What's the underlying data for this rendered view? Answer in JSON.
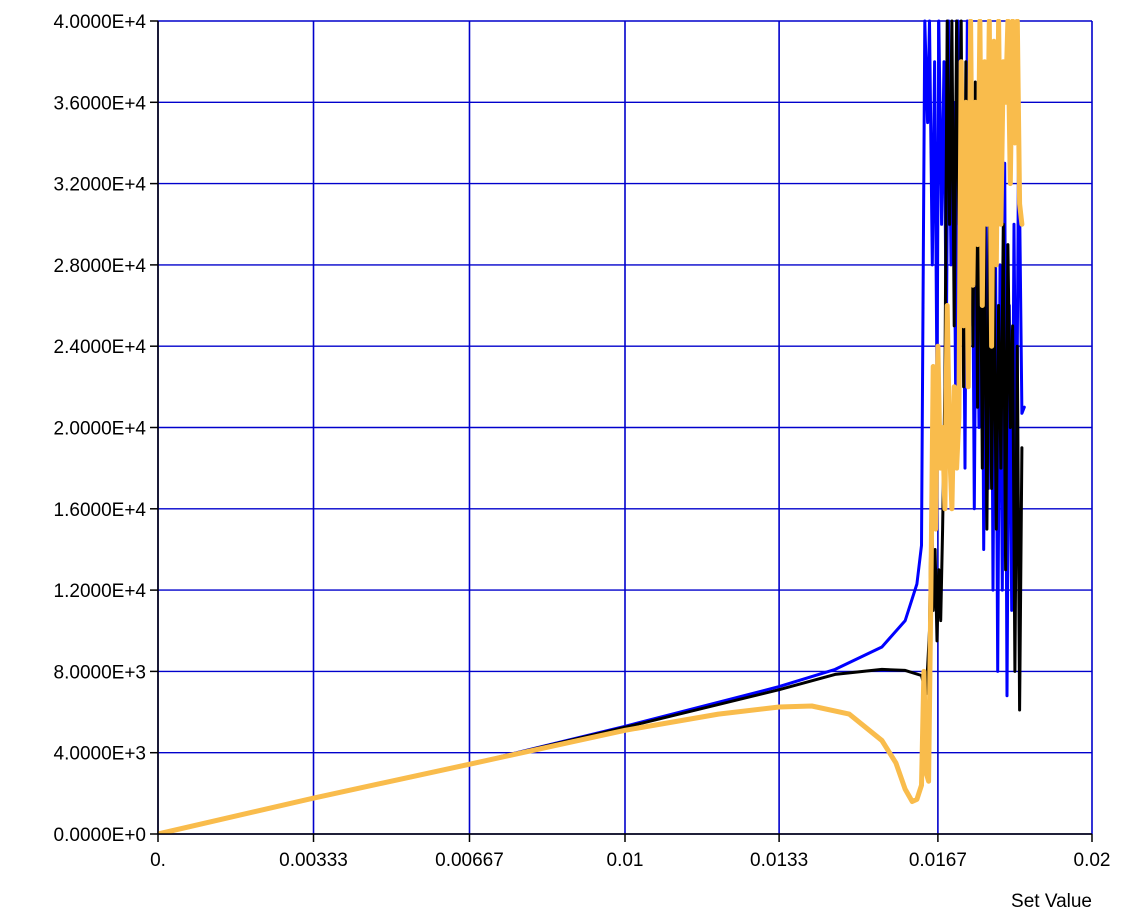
{
  "chart_data": {
    "type": "line",
    "xlabel": "Set Value",
    "ylabel": "",
    "xlim": [
      0,
      0.02
    ],
    "ylim": [
      0,
      40000
    ],
    "grid": true,
    "colors": {
      "grid": "#0000cc",
      "axis": "#000000",
      "background": "#ffffff"
    },
    "x_ticks": [
      {
        "value": 0,
        "label": "0."
      },
      {
        "value": 0.00333,
        "label": "0.00333"
      },
      {
        "value": 0.00667,
        "label": "0.00667"
      },
      {
        "value": 0.01,
        "label": "0.01"
      },
      {
        "value": 0.0133,
        "label": "0.0133"
      },
      {
        "value": 0.0167,
        "label": "0.0167"
      },
      {
        "value": 0.02,
        "label": "0.02"
      }
    ],
    "y_ticks": [
      {
        "value": 0,
        "label": "0.0000E+0"
      },
      {
        "value": 4000,
        "label": "4.0000E+3"
      },
      {
        "value": 8000,
        "label": "8.0000E+3"
      },
      {
        "value": 12000,
        "label": "1.2000E+4"
      },
      {
        "value": 16000,
        "label": "1.6000E+4"
      },
      {
        "value": 20000,
        "label": "2.0000E+4"
      },
      {
        "value": 24000,
        "label": "2.4000E+4"
      },
      {
        "value": 28000,
        "label": "2.8000E+4"
      },
      {
        "value": 32000,
        "label": "3.2000E+4"
      },
      {
        "value": 36000,
        "label": "3.6000E+4"
      },
      {
        "value": 40000,
        "label": "4.0000E+4"
      }
    ],
    "series": [
      {
        "color": "#0000ff",
        "width": 3,
        "points": [
          [
            0,
            0
          ],
          [
            0.0033,
            1750
          ],
          [
            0.0067,
            3450
          ],
          [
            0.01,
            5300
          ],
          [
            0.0133,
            7250
          ],
          [
            0.0145,
            8100
          ],
          [
            0.0155,
            9200
          ],
          [
            0.016,
            10500
          ],
          [
            0.01625,
            12300
          ],
          [
            0.01635,
            14200
          ],
          [
            0.01642,
            40000
          ],
          [
            0.01648,
            35000
          ],
          [
            0.01652,
            40000
          ],
          [
            0.01658,
            28000
          ],
          [
            0.01663,
            38000
          ],
          [
            0.01668,
            22000
          ],
          [
            0.01672,
            40000
          ],
          [
            0.01678,
            30000
          ],
          [
            0.01683,
            38000
          ],
          [
            0.01688,
            24000
          ],
          [
            0.01693,
            40000
          ],
          [
            0.01698,
            28000
          ],
          [
            0.01703,
            36000
          ],
          [
            0.01708,
            22000
          ],
          [
            0.01713,
            40000
          ],
          [
            0.01718,
            26000
          ],
          [
            0.01723,
            35000
          ],
          [
            0.01728,
            18000
          ],
          [
            0.01733,
            40000
          ],
          [
            0.01738,
            25000
          ],
          [
            0.01743,
            35000
          ],
          [
            0.01748,
            16000
          ],
          [
            0.01753,
            33000
          ],
          [
            0.01758,
            20000
          ],
          [
            0.01763,
            38000
          ],
          [
            0.01768,
            14000
          ],
          [
            0.01773,
            30000
          ],
          [
            0.01778,
            17000
          ],
          [
            0.01783,
            36000
          ],
          [
            0.01788,
            12000
          ],
          [
            0.01793,
            31000
          ],
          [
            0.01798,
            8000
          ],
          [
            0.01803,
            28000
          ],
          [
            0.01808,
            12000
          ],
          [
            0.01813,
            33000
          ],
          [
            0.01818,
            6800
          ],
          [
            0.01823,
            26000
          ],
          [
            0.01828,
            11000
          ],
          [
            0.01833,
            30000
          ],
          [
            0.01838,
            16000
          ],
          [
            0.01843,
            35000
          ],
          [
            0.0185,
            20700
          ],
          [
            0.01855,
            21000
          ]
        ]
      },
      {
        "color": "#000000",
        "width": 3,
        "points": [
          [
            0,
            0
          ],
          [
            0.0033,
            1750
          ],
          [
            0.0067,
            3450
          ],
          [
            0.01,
            5250
          ],
          [
            0.0133,
            7100
          ],
          [
            0.0145,
            7850
          ],
          [
            0.0155,
            8100
          ],
          [
            0.016,
            8050
          ],
          [
            0.01635,
            7800
          ],
          [
            0.01645,
            6900
          ],
          [
            0.01652,
            10000
          ],
          [
            0.01656,
            17000
          ],
          [
            0.0166,
            11000
          ],
          [
            0.01664,
            14000
          ],
          [
            0.01668,
            9500
          ],
          [
            0.01672,
            13000
          ],
          [
            0.01676,
            10500
          ],
          [
            0.0168,
            15000
          ],
          [
            0.01685,
            22000
          ],
          [
            0.0169,
            40000
          ],
          [
            0.01695,
            30000
          ],
          [
            0.017,
            40000
          ],
          [
            0.01705,
            25000
          ],
          [
            0.0171,
            40000
          ],
          [
            0.01715,
            30000
          ],
          [
            0.0172,
            40000
          ],
          [
            0.01725,
            22000
          ],
          [
            0.0173,
            38000
          ],
          [
            0.01735,
            26000
          ],
          [
            0.0174,
            40000
          ],
          [
            0.01745,
            24000
          ],
          [
            0.0175,
            37000
          ],
          [
            0.01755,
            21000
          ],
          [
            0.0176,
            34000
          ],
          [
            0.01765,
            18000
          ],
          [
            0.0177,
            31000
          ],
          [
            0.01775,
            15000
          ],
          [
            0.0178,
            30000
          ],
          [
            0.01785,
            17000
          ],
          [
            0.0179,
            28000
          ],
          [
            0.01795,
            15000
          ],
          [
            0.018,
            26000
          ],
          [
            0.01805,
            18000
          ],
          [
            0.0181,
            30000
          ],
          [
            0.01815,
            13000
          ],
          [
            0.0182,
            29000
          ],
          [
            0.01825,
            20000
          ],
          [
            0.0183,
            25000
          ],
          [
            0.01835,
            8000
          ],
          [
            0.0184,
            24000
          ],
          [
            0.01845,
            6100
          ],
          [
            0.0185,
            19000
          ]
        ]
      },
      {
        "color": "#f9bc4c",
        "width": 5,
        "points": [
          [
            0,
            0
          ],
          [
            0.0033,
            1750
          ],
          [
            0.0067,
            3450
          ],
          [
            0.01,
            5100
          ],
          [
            0.012,
            5900
          ],
          [
            0.0133,
            6250
          ],
          [
            0.014,
            6300
          ],
          [
            0.0148,
            5900
          ],
          [
            0.0155,
            4600
          ],
          [
            0.0158,
            3500
          ],
          [
            0.016,
            2200
          ],
          [
            0.01615,
            1600
          ],
          [
            0.01625,
            1700
          ],
          [
            0.01635,
            2400
          ],
          [
            0.0164,
            8000
          ],
          [
            0.01645,
            3000
          ],
          [
            0.0165,
            2600
          ],
          [
            0.01655,
            12000
          ],
          [
            0.0166,
            23000
          ],
          [
            0.01665,
            15000
          ],
          [
            0.0167,
            24000
          ],
          [
            0.01675,
            18000
          ],
          [
            0.0168,
            20000
          ],
          [
            0.01685,
            16000
          ],
          [
            0.0169,
            26000
          ],
          [
            0.01695,
            19000
          ],
          [
            0.017,
            16000
          ],
          [
            0.01705,
            22000
          ],
          [
            0.0171,
            18000
          ],
          [
            0.01715,
            20500
          ],
          [
            0.0172,
            38000
          ],
          [
            0.01725,
            25000
          ],
          [
            0.0173,
            36000
          ],
          [
            0.01735,
            22000
          ],
          [
            0.0174,
            40000
          ],
          [
            0.01745,
            27000
          ],
          [
            0.0175,
            36000
          ],
          [
            0.01755,
            29000
          ],
          [
            0.0176,
            40000
          ],
          [
            0.01765,
            26000
          ],
          [
            0.0177,
            38000
          ],
          [
            0.01775,
            30000
          ],
          [
            0.0178,
            40000
          ],
          [
            0.01785,
            24000
          ],
          [
            0.0179,
            39000
          ],
          [
            0.01795,
            28000
          ],
          [
            0.018,
            40000
          ],
          [
            0.01805,
            30000
          ],
          [
            0.0181,
            38000
          ],
          [
            0.01815,
            36000
          ],
          [
            0.0182,
            40000
          ],
          [
            0.01825,
            32000
          ],
          [
            0.0183,
            40000
          ],
          [
            0.01835,
            34000
          ],
          [
            0.0184,
            40000
          ],
          [
            0.01845,
            31000
          ],
          [
            0.0185,
            30000
          ]
        ]
      }
    ]
  }
}
